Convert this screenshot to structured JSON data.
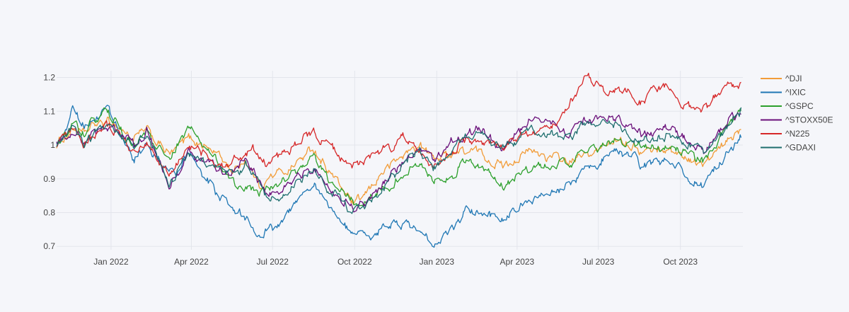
{
  "chart_data": {
    "type": "line",
    "title": "",
    "xlabel": "",
    "ylabel": "",
    "x_start": "2021-11-01",
    "x_end": "2023-12-10",
    "ylim": [
      0.69,
      1.22
    ],
    "grid": true,
    "legend_position": "right",
    "x_ticks": [
      {
        "date": "2022-01-01",
        "label": "Jan 2022"
      },
      {
        "date": "2022-04-01",
        "label": "Apr 2022"
      },
      {
        "date": "2022-07-01",
        "label": "Jul 2022"
      },
      {
        "date": "2022-10-01",
        "label": "Oct 2022"
      },
      {
        "date": "2023-01-01",
        "label": "Jan 2023"
      },
      {
        "date": "2023-04-01",
        "label": "Apr 2023"
      },
      {
        "date": "2023-07-01",
        "label": "Jul 2023"
      },
      {
        "date": "2023-10-01",
        "label": "Oct 2023"
      }
    ],
    "y_ticks": [
      {
        "value": 0.7,
        "label": "0.7"
      },
      {
        "value": 0.8,
        "label": "0.8"
      },
      {
        "value": 0.9,
        "label": "0.9"
      },
      {
        "value": 1.0,
        "label": "1"
      },
      {
        "value": 1.1,
        "label": "1.1"
      },
      {
        "value": 1.2,
        "label": "1.2"
      }
    ],
    "series": [
      {
        "name": "^DJI",
        "color": "#f29c38",
        "points": [
          [
            "2021-11-01",
            1.0
          ],
          [
            "2021-11-20",
            1.05
          ],
          [
            "2021-12-01",
            1.03
          ],
          [
            "2021-12-15",
            1.06
          ],
          [
            "2022-01-03",
            1.07
          ],
          [
            "2022-01-25",
            1.02
          ],
          [
            "2022-02-10",
            1.04
          ],
          [
            "2022-03-08",
            0.97
          ],
          [
            "2022-03-29",
            1.02
          ],
          [
            "2022-04-15",
            1.0
          ],
          [
            "2022-05-02",
            0.97
          ],
          [
            "2022-05-19",
            0.92
          ],
          [
            "2022-05-31",
            0.96
          ],
          [
            "2022-06-17",
            0.88
          ],
          [
            "2022-07-01",
            0.91
          ],
          [
            "2022-07-20",
            0.93
          ],
          [
            "2022-08-16",
            0.99
          ],
          [
            "2022-09-01",
            0.93
          ],
          [
            "2022-09-30",
            0.82
          ],
          [
            "2022-10-13",
            0.85
          ],
          [
            "2022-11-01",
            0.92
          ],
          [
            "2022-11-30",
            0.98
          ],
          [
            "2022-12-13",
            1.0
          ],
          [
            "2022-12-28",
            0.96
          ],
          [
            "2023-01-20",
            0.98
          ],
          [
            "2023-02-15",
            0.98
          ],
          [
            "2023-03-15",
            0.94
          ],
          [
            "2023-04-15",
            0.98
          ],
          [
            "2023-05-31",
            0.95
          ],
          [
            "2023-06-30",
            0.98
          ],
          [
            "2023-07-25",
            1.03
          ],
          [
            "2023-08-18",
            0.98
          ],
          [
            "2023-09-15",
            0.99
          ],
          [
            "2023-10-27",
            0.94
          ],
          [
            "2023-11-20",
            1.0
          ],
          [
            "2023-12-08",
            1.05
          ]
        ]
      },
      {
        "name": "^IXIC",
        "color": "#1f77b4",
        "points": [
          [
            "2021-11-01",
            1.0
          ],
          [
            "2021-11-19",
            1.1
          ],
          [
            "2021-12-01",
            1.06
          ],
          [
            "2021-12-27",
            1.1
          ],
          [
            "2022-01-27",
            0.96
          ],
          [
            "2022-02-10",
            1.0
          ],
          [
            "2022-03-14",
            0.9
          ],
          [
            "2022-03-29",
            0.97
          ],
          [
            "2022-04-29",
            0.86
          ],
          [
            "2022-05-20",
            0.81
          ],
          [
            "2022-06-16",
            0.74
          ],
          [
            "2022-07-01",
            0.75
          ],
          [
            "2022-07-29",
            0.84
          ],
          [
            "2022-08-16",
            0.89
          ],
          [
            "2022-09-01",
            0.83
          ],
          [
            "2022-09-30",
            0.72
          ],
          [
            "2022-10-13",
            0.73
          ],
          [
            "2022-11-15",
            0.77
          ],
          [
            "2022-11-30",
            0.77
          ],
          [
            "2022-12-28",
            0.71
          ],
          [
            "2023-01-20",
            0.76
          ],
          [
            "2023-02-02",
            0.81
          ],
          [
            "2023-03-15",
            0.78
          ],
          [
            "2023-04-20",
            0.84
          ],
          [
            "2023-05-31",
            0.88
          ],
          [
            "2023-06-15",
            0.92
          ],
          [
            "2023-07-19",
            0.99
          ],
          [
            "2023-08-18",
            0.94
          ],
          [
            "2023-09-15",
            0.95
          ],
          [
            "2023-10-26",
            0.88
          ],
          [
            "2023-11-20",
            0.97
          ],
          [
            "2023-12-08",
            1.03
          ]
        ]
      },
      {
        "name": "^GSPC",
        "color": "#2ca02c",
        "points": [
          [
            "2021-11-01",
            1.0
          ],
          [
            "2021-11-20",
            1.06
          ],
          [
            "2021-12-01",
            1.04
          ],
          [
            "2021-12-27",
            1.1
          ],
          [
            "2022-01-27",
            0.99
          ],
          [
            "2022-02-10",
            1.03
          ],
          [
            "2022-03-08",
            0.95
          ],
          [
            "2022-03-29",
            1.05
          ],
          [
            "2022-04-15",
            1.0
          ],
          [
            "2022-05-02",
            0.94
          ],
          [
            "2022-05-20",
            0.89
          ],
          [
            "2022-06-16",
            0.86
          ],
          [
            "2022-07-01",
            0.88
          ],
          [
            "2022-08-16",
            0.96
          ],
          [
            "2022-09-01",
            0.9
          ],
          [
            "2022-09-30",
            0.83
          ],
          [
            "2022-10-13",
            0.84
          ],
          [
            "2022-11-30",
            0.92
          ],
          [
            "2022-12-13",
            0.95
          ],
          [
            "2022-12-28",
            0.89
          ],
          [
            "2023-01-20",
            0.91
          ],
          [
            "2023-02-02",
            0.96
          ],
          [
            "2023-03-15",
            0.88
          ],
          [
            "2023-04-15",
            0.93
          ],
          [
            "2023-05-31",
            0.95
          ],
          [
            "2023-06-30",
            0.99
          ],
          [
            "2023-07-25",
            1.02
          ],
          [
            "2023-08-18",
            0.99
          ],
          [
            "2023-09-15",
            1.0
          ],
          [
            "2023-10-27",
            0.95
          ],
          [
            "2023-11-20",
            1.04
          ],
          [
            "2023-12-08",
            1.09
          ]
        ]
      },
      {
        "name": "^STOXX50E",
        "color": "#6a0f7a",
        "points": [
          [
            "2021-11-01",
            1.0
          ],
          [
            "2021-11-20",
            1.05
          ],
          [
            "2021-12-01",
            1.0
          ],
          [
            "2021-12-27",
            1.06
          ],
          [
            "2022-01-27",
            1.0
          ],
          [
            "2022-02-10",
            1.04
          ],
          [
            "2022-03-07",
            0.88
          ],
          [
            "2022-03-29",
            0.98
          ],
          [
            "2022-04-15",
            0.95
          ],
          [
            "2022-05-10",
            0.92
          ],
          [
            "2022-06-01",
            0.95
          ],
          [
            "2022-06-23",
            0.86
          ],
          [
            "2022-07-01",
            0.85
          ],
          [
            "2022-08-16",
            0.93
          ],
          [
            "2022-09-01",
            0.88
          ],
          [
            "2022-09-30",
            0.82
          ],
          [
            "2022-10-13",
            0.83
          ],
          [
            "2022-11-15",
            0.92
          ],
          [
            "2022-11-30",
            0.97
          ],
          [
            "2022-12-13",
            0.99
          ],
          [
            "2022-12-28",
            0.95
          ],
          [
            "2023-01-20",
            1.02
          ],
          [
            "2023-02-15",
            1.05
          ],
          [
            "2023-03-15",
            0.99
          ],
          [
            "2023-04-15",
            1.07
          ],
          [
            "2023-05-31",
            1.04
          ],
          [
            "2023-06-15",
            1.07
          ],
          [
            "2023-07-25",
            1.08
          ],
          [
            "2023-08-18",
            1.03
          ],
          [
            "2023-09-15",
            1.05
          ],
          [
            "2023-10-27",
            0.98
          ],
          [
            "2023-11-20",
            1.06
          ],
          [
            "2023-12-08",
            1.11
          ]
        ]
      },
      {
        "name": "^N225",
        "color": "#d62728",
        "points": [
          [
            "2021-11-01",
            1.0
          ],
          [
            "2021-11-20",
            1.04
          ],
          [
            "2021-12-01",
            1.0
          ],
          [
            "2021-12-27",
            1.06
          ],
          [
            "2022-01-27",
            0.98
          ],
          [
            "2022-02-10",
            1.0
          ],
          [
            "2022-03-08",
            0.92
          ],
          [
            "2022-03-29",
            1.0
          ],
          [
            "2022-04-15",
            0.97
          ],
          [
            "2022-05-12",
            0.94
          ],
          [
            "2022-06-09",
            0.99
          ],
          [
            "2022-06-20",
            0.94
          ],
          [
            "2022-07-01",
            0.95
          ],
          [
            "2022-08-16",
            1.04
          ],
          [
            "2022-09-01",
            1.0
          ],
          [
            "2022-09-30",
            0.94
          ],
          [
            "2022-10-13",
            0.95
          ],
          [
            "2022-11-25",
            1.02
          ],
          [
            "2022-12-13",
            0.99
          ],
          [
            "2022-12-28",
            0.94
          ],
          [
            "2023-01-20",
            0.99
          ],
          [
            "2023-02-15",
            1.02
          ],
          [
            "2023-03-15",
            0.99
          ],
          [
            "2023-04-15",
            1.04
          ],
          [
            "2023-05-15",
            1.06
          ],
          [
            "2023-06-01",
            1.13
          ],
          [
            "2023-06-19",
            1.21
          ],
          [
            "2023-07-12",
            1.15
          ],
          [
            "2023-08-01",
            1.17
          ],
          [
            "2023-08-18",
            1.13
          ],
          [
            "2023-09-15",
            1.18
          ],
          [
            "2023-10-04",
            1.11
          ],
          [
            "2023-10-31",
            1.11
          ],
          [
            "2023-11-20",
            1.18
          ],
          [
            "2023-12-08",
            1.18
          ]
        ]
      },
      {
        "name": "^GDAXI",
        "color": "#1f6f6f",
        "points": [
          [
            "2021-11-01",
            1.0
          ],
          [
            "2021-11-20",
            1.06
          ],
          [
            "2021-12-01",
            1.0
          ],
          [
            "2021-12-27",
            1.07
          ],
          [
            "2022-01-27",
            1.0
          ],
          [
            "2022-02-10",
            1.04
          ],
          [
            "2022-03-07",
            0.87
          ],
          [
            "2022-03-29",
            0.98
          ],
          [
            "2022-04-15",
            0.95
          ],
          [
            "2022-05-10",
            0.91
          ],
          [
            "2022-06-01",
            0.94
          ],
          [
            "2022-06-23",
            0.85
          ],
          [
            "2022-07-01",
            0.84
          ],
          [
            "2022-08-16",
            0.92
          ],
          [
            "2022-09-01",
            0.87
          ],
          [
            "2022-09-30",
            0.8
          ],
          [
            "2022-10-13",
            0.82
          ],
          [
            "2022-11-15",
            0.91
          ],
          [
            "2022-11-30",
            0.96
          ],
          [
            "2022-12-13",
            0.98
          ],
          [
            "2022-12-28",
            0.93
          ],
          [
            "2023-01-20",
            1.0
          ],
          [
            "2023-02-15",
            1.04
          ],
          [
            "2023-03-15",
            0.98
          ],
          [
            "2023-04-15",
            1.05
          ],
          [
            "2023-05-31",
            1.02
          ],
          [
            "2023-06-15",
            1.07
          ],
          [
            "2023-07-25",
            1.06
          ],
          [
            "2023-08-18",
            1.01
          ],
          [
            "2023-09-15",
            1.03
          ],
          [
            "2023-10-27",
            0.97
          ],
          [
            "2023-11-20",
            1.05
          ],
          [
            "2023-12-08",
            1.1
          ]
        ]
      }
    ]
  }
}
